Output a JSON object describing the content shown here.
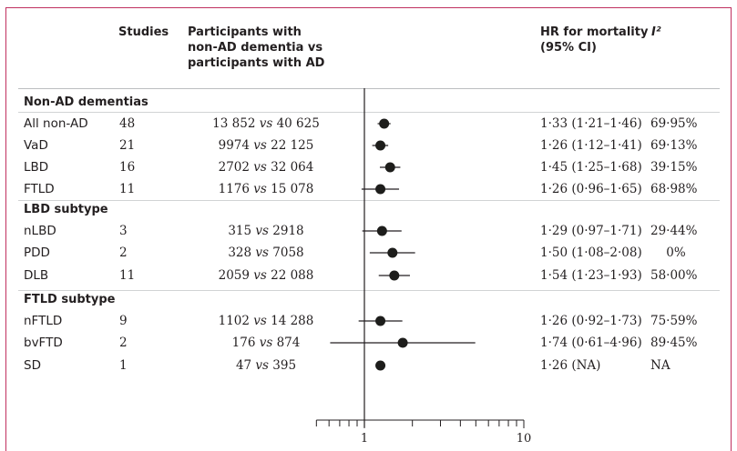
{
  "headers": {
    "studies": "Studies",
    "participants": [
      "Participants with",
      "non-AD dementia vs",
      "participants with AD"
    ],
    "hr": [
      "HR for mortality",
      "(95% CI)"
    ],
    "i2": "I²"
  },
  "sections": [
    {
      "label": "Non-AD dementias",
      "rows": [
        {
          "name": "All non-AD",
          "studies": "48",
          "nonad": "13 852",
          "vs": "vs",
          "ad": "40 625",
          "hr_text": "1·33 (1·21–1·46)",
          "i2": "69·95%"
        },
        {
          "name": "VaD",
          "studies": "21",
          "nonad": "9974",
          "vs": "vs",
          "ad": "22 125",
          "hr_text": "1·26 (1·12–1·41)",
          "i2": "69·13%"
        },
        {
          "name": "LBD",
          "studies": "16",
          "nonad": "2702",
          "vs": "vs",
          "ad": "32 064",
          "hr_text": "1·45 (1·25–1·68)",
          "i2": "39·15%"
        },
        {
          "name": "FTLD",
          "studies": "11",
          "nonad": "1176",
          "vs": "vs",
          "ad": "15 078",
          "hr_text": "1·26 (0·96–1·65)",
          "i2": "68·98%"
        }
      ]
    },
    {
      "label": "LBD subtype",
      "rows": [
        {
          "name": "nLBD",
          "studies": "3",
          "nonad": "315",
          "vs": "vs",
          "ad": "2918",
          "hr_text": "1·29 (0·97–1·71)",
          "i2": "29·44%"
        },
        {
          "name": "PDD",
          "studies": "2",
          "nonad": "328",
          "vs": "vs",
          "ad": "7058",
          "hr_text": "1·50 (1·08–2·08)",
          "i2": "0%"
        },
        {
          "name": "DLB",
          "studies": "11",
          "nonad": "2059",
          "vs": "vs",
          "ad": "22 088",
          "hr_text": "1·54 (1·23–1·93)",
          "i2": "58·00%"
        }
      ]
    },
    {
      "label": "FTLD subtype",
      "rows": [
        {
          "name": "nFTLD",
          "studies": "9",
          "nonad": "1102",
          "vs": "vs",
          "ad": "14 288",
          "hr_text": "1·26 (0·92–1·73)",
          "i2": "75·59%"
        },
        {
          "name": "bvFTD",
          "studies": "2",
          "nonad": "176",
          "vs": "vs",
          "ad": "874",
          "hr_text": "1·74 (0·61–4·96)",
          "i2": "89·45%"
        },
        {
          "name": "SD",
          "studies": "1",
          "nonad": "47",
          "vs": "vs",
          "ad": "395",
          "hr_text": "1·26 (NA)",
          "i2": "NA"
        }
      ]
    }
  ],
  "chart_data": {
    "type": "forest",
    "x_scale": "log",
    "xlim": [
      0.5,
      10
    ],
    "reference_line": 1,
    "tick_labels": [
      {
        "value": 1,
        "text": "1"
      },
      {
        "value": 10,
        "text": "10"
      }
    ],
    "points": [
      {
        "name": "All non-AD",
        "hr": 1.33,
        "lo": 1.21,
        "hi": 1.46
      },
      {
        "name": "VaD",
        "hr": 1.26,
        "lo": 1.12,
        "hi": 1.41
      },
      {
        "name": "LBD",
        "hr": 1.45,
        "lo": 1.25,
        "hi": 1.68
      },
      {
        "name": "FTLD",
        "hr": 1.26,
        "lo": 0.96,
        "hi": 1.65
      },
      {
        "name": "nLBD",
        "hr": 1.29,
        "lo": 0.97,
        "hi": 1.71
      },
      {
        "name": "PDD",
        "hr": 1.5,
        "lo": 1.08,
        "hi": 2.08
      },
      {
        "name": "DLB",
        "hr": 1.54,
        "lo": 1.23,
        "hi": 1.93
      },
      {
        "name": "nFTLD",
        "hr": 1.26,
        "lo": 0.92,
        "hi": 1.73
      },
      {
        "name": "bvFTD",
        "hr": 1.74,
        "lo": 0.61,
        "hi": 4.96
      },
      {
        "name": "SD",
        "hr": 1.26,
        "lo": null,
        "hi": null
      }
    ]
  }
}
